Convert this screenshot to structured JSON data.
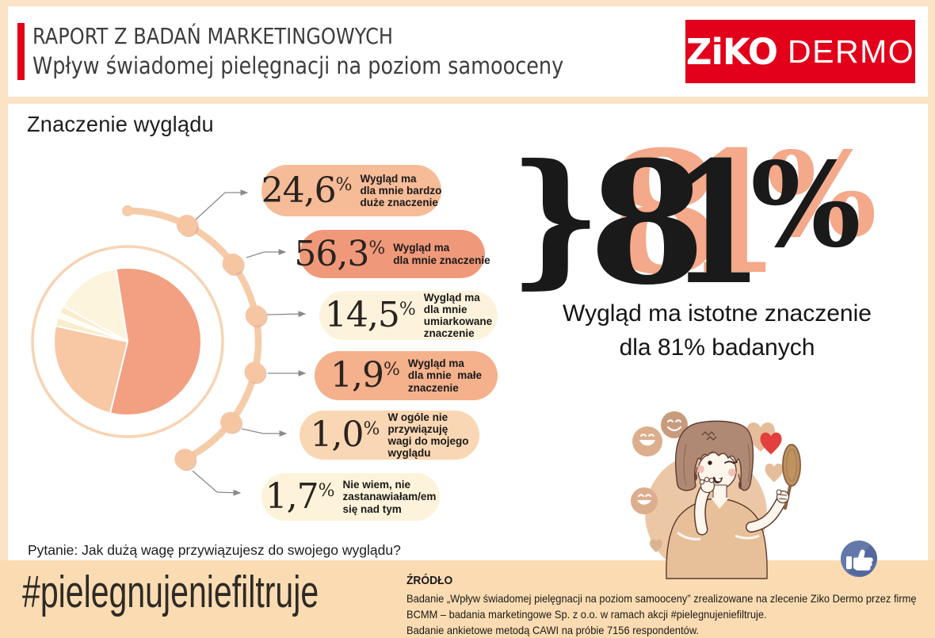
{
  "page": {
    "frame": "#fbe3c5",
    "panel": "#ffffff",
    "bar": "#fbdcb2",
    "red": "#e2001a",
    "chain": "#f5cba8",
    "ring": "#f8d3b2",
    "arrow": "#8a8a8a",
    "hink": "#3d3d3c",
    "ghost": "#f3a98a"
  },
  "header": {
    "eyebrow": "RAPORT Z BADAŃ MARKETINGOWYCH",
    "title": "Wpływ świadomej pielęgnacji na poziom samooceny",
    "logo_primary": "ZiKO",
    "logo_secondary": "DERMO"
  },
  "chart_data": {
    "type": "pie",
    "title": "Znaczenie wyglądu",
    "question": "Pytanie: Jak dużą wagę przywiązujesz do swojego wyglądu?",
    "value_suffix": "%",
    "slices": [
      {
        "display": "24,6",
        "value": 24.6,
        "label": "Wygląd ma\ndla mnie bardzo\nduże znaczenie",
        "pill_color": "#f6bb97",
        "slice_color": "#f8c7a3"
      },
      {
        "display": "56,3",
        "value": 56.3,
        "label": "Wygląd ma\ndla mnie znaczenie",
        "pill_color": "#f0997a",
        "slice_color": "#f2a081"
      },
      {
        "display": "14,5",
        "value": 14.5,
        "label": "Wygląd ma\ndla mnie\numiarkowane\nznaczenie",
        "pill_color": "#fdf3dc",
        "slice_color": "#fdf4de"
      },
      {
        "display": "1,9",
        "value": 1.9,
        "label": "Wygląd ma\ndla mnie  małe\nznaczenie",
        "pill_color": "#f4b18c",
        "slice_color": "#faeccc"
      },
      {
        "display": "1,0",
        "value": 1.0,
        "label": "W ogóle nie\nprzywiązuję\nwagi do mojego\nwyglądu",
        "pill_color": "#fad7b4",
        "slice_color": "#fffcf0"
      },
      {
        "display": "1,7",
        "value": 1.7,
        "label": "Nie wiem, nie\nzastanawiałam/em\nsię nad tym",
        "pill_color": "#fdf3da",
        "slice_color": "#fbeccd"
      }
    ],
    "pie_order": [
      1,
      0,
      3,
      4,
      5,
      2
    ],
    "start_angle_deg": -9,
    "highlight": {
      "brace": "}",
      "number": "81",
      "suffix": "%",
      "caption_line1": "Wygląd ma istotne znaczenie",
      "caption_line2": "dla 81% badanych"
    }
  },
  "footer": {
    "hashtag": "#pielegnujeniefiltruje",
    "source_heading": "ŹRÓDŁO",
    "source_lines": [
      "Badanie „Wpływ świadomej pielęgnacji na poziom samooceny” zrealizowane na zlecenie Ziko Dermo przez firmę",
      "BCMM – badania marketingowe Sp. z o.o. w ramach akcji #pielegnujeniefiltruje.",
      "Badanie ankietowe metodą CAWI na próbie 7156 respondentów."
    ]
  },
  "illustration": {
    "tan": "#ebc7a5",
    "hair": "#b08974",
    "skin": "#fdf6ec",
    "line": "#5d3a2f",
    "blouse": "#e7c09a",
    "emoji_dark": "#c99b7d",
    "emoji_light": "#dcae8d",
    "heart_red": "#e2403c",
    "heart_tan": "#e5bd9a",
    "mirror": "#c0925f",
    "fb_blue": "#6478ab",
    "fb_shadow": "#55689e"
  }
}
